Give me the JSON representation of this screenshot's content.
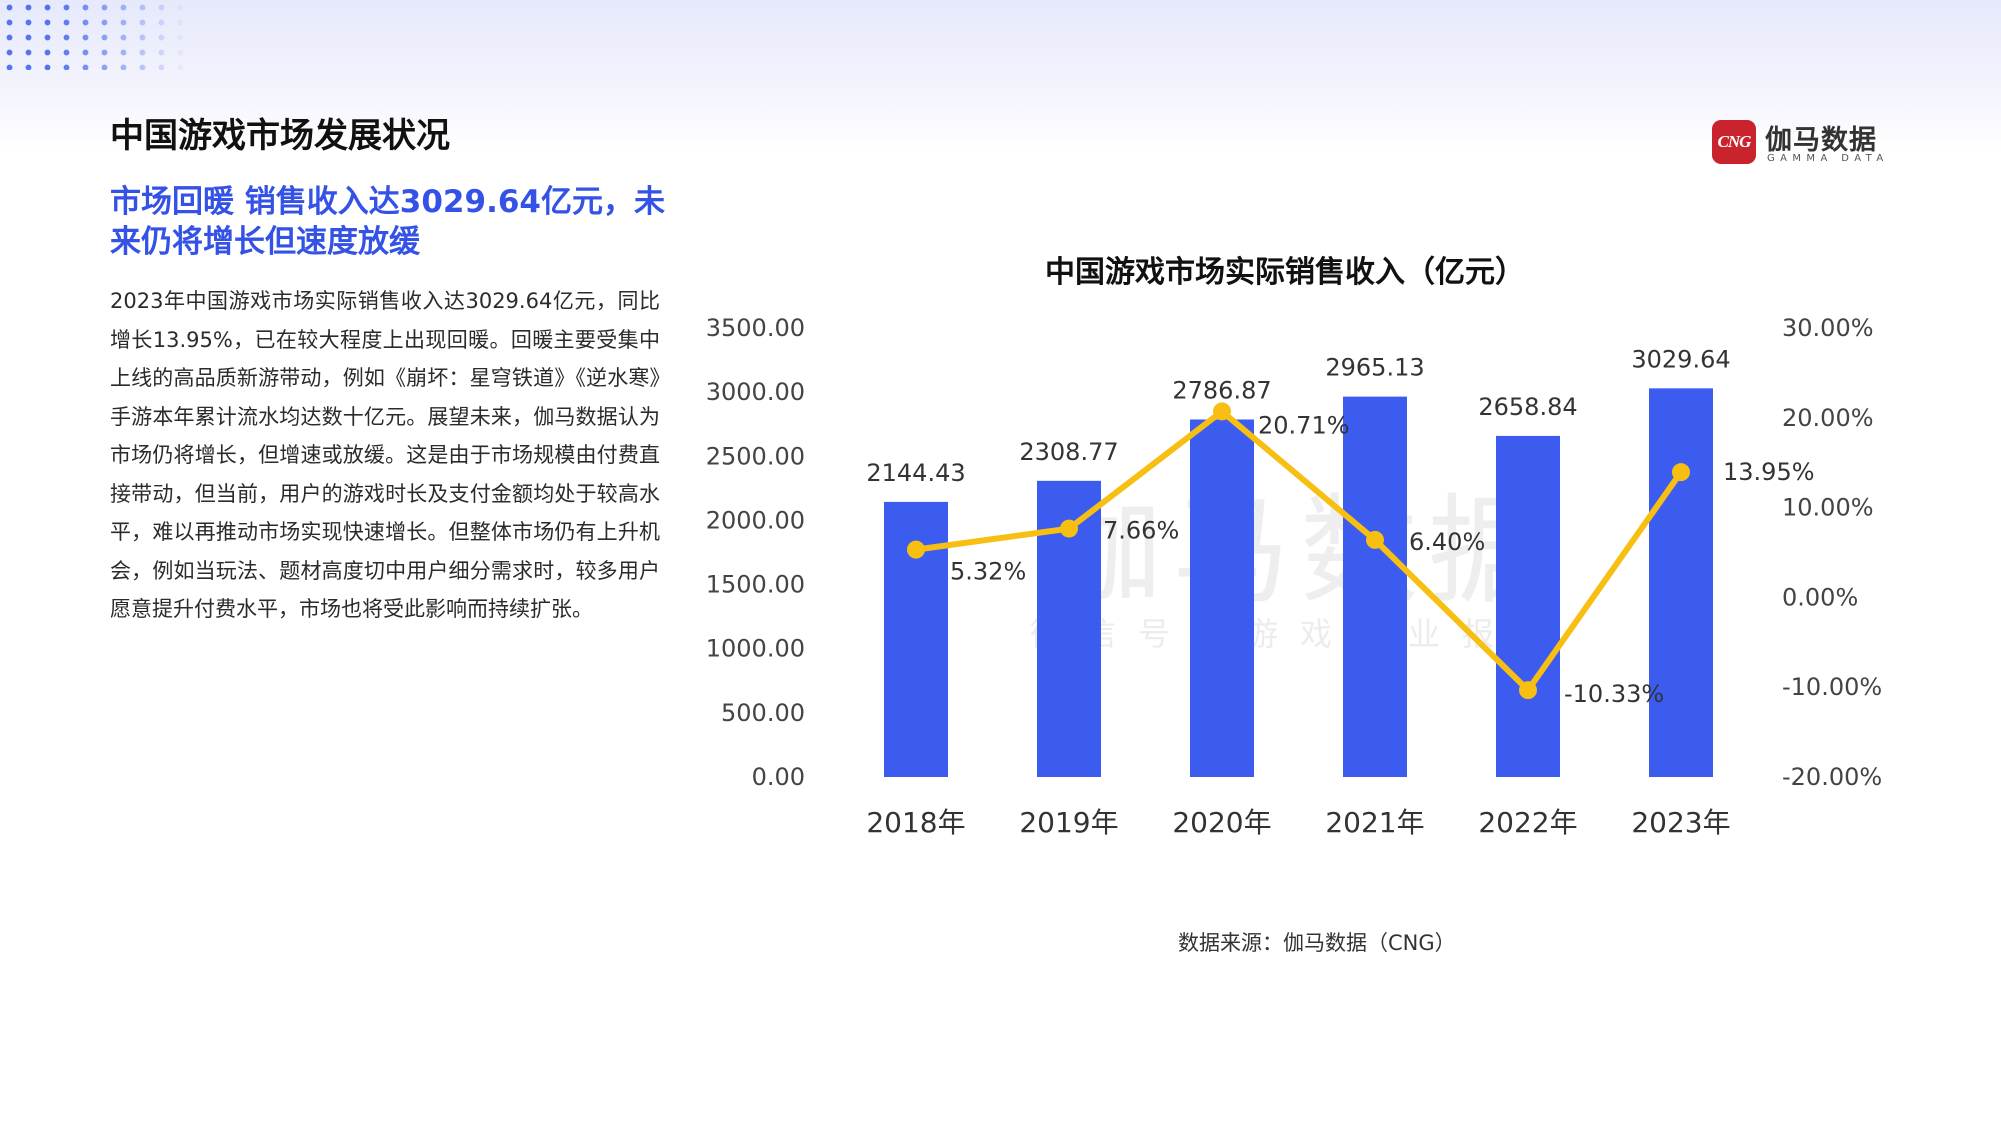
{
  "page": {
    "title": "中国游戏市场发展状况",
    "headline": "市场回暖 销售收入达3029.64亿元，未来仍将增长但速度放缓",
    "body": "2023年中国游戏市场实际销售收入达3029.64亿元，同比增长13.95%，已在较大程度上出现回暖。回暖主要受集中上线的高品质新游带动，例如《崩坏：星穹铁道》《逆水寒》手游本年累计流水均达数十亿元。展望未来，伽马数据认为市场仍将增长，但增速或放缓。这是由于市场规模由付费直接带动，但当前，用户的游戏时长及支付金额均处于较高水平，难以再推动市场实现快速增长。但整体市场仍有上升机会，例如当玩法、题材高度切中用户细分需求时，较多用户愿意提升付费水平，市场也将受此影响而持续扩张。",
    "source": "数据来源：伽马数据（CNG）"
  },
  "logo": {
    "badge": "CNG",
    "name": "伽马数据",
    "sub": "GAMMA DATA"
  },
  "watermark": {
    "main": "伽马数据",
    "sub": "微信号：游戏产业报告"
  },
  "colors": {
    "bar": "#3c5cf0",
    "line": "#f6bf12",
    "headline": "#3452e6"
  },
  "chart_data": {
    "type": "bar",
    "title": "中国游戏市场实际销售收入（亿元）",
    "categories": [
      "2018年",
      "2019年",
      "2020年",
      "2021年",
      "2022年",
      "2023年"
    ],
    "series": [
      {
        "type": "bar",
        "axis": "left",
        "values": [
          2144.43,
          2308.77,
          2786.87,
          2965.13,
          2658.84,
          3029.64
        ],
        "labels": [
          "2144.43",
          "2308.77",
          "2786.87",
          "2965.13",
          "2658.84",
          "3029.64"
        ]
      },
      {
        "type": "line",
        "axis": "right",
        "values": [
          5.32,
          7.66,
          20.71,
          6.4,
          -10.33,
          13.95
        ],
        "labels": [
          "5.32%",
          "7.66%",
          "20.71%",
          "6.40%",
          "-10.33%",
          "13.95%"
        ]
      }
    ],
    "y_left": {
      "min": 0,
      "max": 3500,
      "ticks": [
        "0.00",
        "500.00",
        "1000.00",
        "1500.00",
        "2000.00",
        "2500.00",
        "3000.00",
        "3500.00"
      ]
    },
    "y_right": {
      "min": -20,
      "max": 30,
      "ticks": [
        "-20.00%",
        "-10.00%",
        "0.00%",
        "10.00%",
        "20.00%",
        "30.00%"
      ]
    },
    "grid": false,
    "legend": "none"
  }
}
